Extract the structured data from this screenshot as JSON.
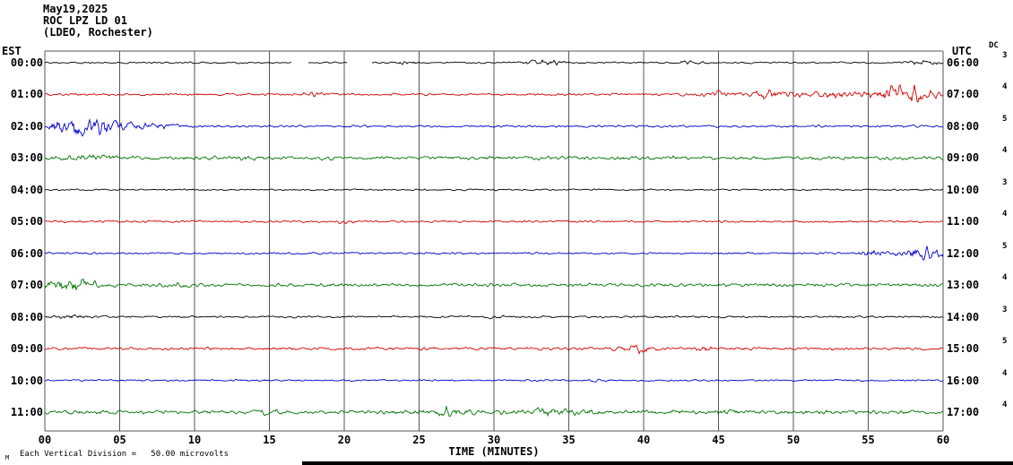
{
  "header": {
    "date": "May19,2025",
    "station": "ROC LPZ LD 01",
    "network": "(LDEO, Rochester)"
  },
  "axes": {
    "left_label": "EST",
    "right_label": "UTC",
    "dc_label": "DC",
    "x_title": "TIME (MINUTES)",
    "x_ticks": [
      "00",
      "05",
      "10",
      "15",
      "20",
      "25",
      "30",
      "35",
      "40",
      "45",
      "50",
      "55",
      "60"
    ]
  },
  "footer": {
    "corner_mark": "M",
    "scale_note": "Each Vertical Division =   50.00 microvolts"
  },
  "colors": {
    "black": "#000000",
    "red": "#d40000",
    "blue": "#0000cc",
    "green": "#007400"
  },
  "chart_data": {
    "type": "line",
    "kind": "seismogram-helicorder",
    "title": "ROC LPZ LD 01 (LDEO, Rochester) May19,2025",
    "xlabel": "TIME (MINUTES)",
    "x_range_minutes": [
      0,
      60
    ],
    "minutes_per_row": 60,
    "vertical_division_microvolts": 50.0,
    "rows": [
      {
        "est": "00:00",
        "utc": "06:00",
        "color": "black",
        "dc": "3",
        "base_amp": 0.7,
        "events": [
          {
            "m": 24,
            "w": 0.5,
            "a": 1.2
          },
          {
            "m": 33.5,
            "w": 1.0,
            "a": 2.2
          },
          {
            "m": 43,
            "w": 0.6,
            "a": 1.2
          },
          {
            "m": 58.5,
            "w": 0.8,
            "a": 1.8
          }
        ],
        "gaps": [
          [
            16.5,
            17.6
          ],
          [
            20.2,
            21.8
          ]
        ]
      },
      {
        "est": "01:00",
        "utc": "07:00",
        "color": "red",
        "dc": "4",
        "base_amp": 1.0,
        "events": [
          {
            "m": 18,
            "w": 0.4,
            "a": 2.0
          },
          {
            "m": 44.5,
            "w": 1.0,
            "a": 2.0
          },
          {
            "m": 48.5,
            "w": 1.2,
            "a": 3.5
          },
          {
            "m": 52.5,
            "w": 1.0,
            "a": 3.0
          },
          {
            "m": 57.3,
            "w": 1.4,
            "a": 9.0
          }
        ],
        "gaps": []
      },
      {
        "est": "02:00",
        "utc": "08:00",
        "color": "blue",
        "dc": "5",
        "base_amp": 1.0,
        "events": [
          {
            "m": 2.3,
            "w": 1.3,
            "a": 8.0
          },
          {
            "m": 4.8,
            "w": 1.0,
            "a": 3.5
          },
          {
            "m": 7.5,
            "w": 1.5,
            "a": 1.5
          }
        ],
        "gaps": []
      },
      {
        "est": "03:00",
        "utc": "09:00",
        "color": "green",
        "dc": "4",
        "base_amp": 1.6,
        "events": [
          {
            "m": 3,
            "w": 1.5,
            "a": 2.2
          },
          {
            "m": 14,
            "w": 0.6,
            "a": 1.2
          }
        ],
        "gaps": []
      },
      {
        "est": "04:00",
        "utc": "10:00",
        "color": "black",
        "dc": "3",
        "base_amp": 0.7,
        "events": [],
        "gaps": []
      },
      {
        "est": "05:00",
        "utc": "11:00",
        "color": "red",
        "dc": "4",
        "base_amp": 0.9,
        "events": [
          {
            "m": 20,
            "w": 0.4,
            "a": 1.2
          }
        ],
        "gaps": []
      },
      {
        "est": "06:00",
        "utc": "12:00",
        "color": "blue",
        "dc": "5",
        "base_amp": 0.8,
        "events": [
          {
            "m": 55.5,
            "w": 0.7,
            "a": 2.5
          },
          {
            "m": 58.6,
            "w": 1.0,
            "a": 5.0
          }
        ],
        "gaps": []
      },
      {
        "est": "07:00",
        "utc": "13:00",
        "color": "green",
        "dc": "4",
        "base_amp": 1.5,
        "events": [
          {
            "m": 1.6,
            "w": 1.2,
            "a": 5.0
          },
          {
            "m": 9,
            "w": 0.5,
            "a": 1.5
          }
        ],
        "gaps": []
      },
      {
        "est": "08:00",
        "utc": "14:00",
        "color": "black",
        "dc": "3",
        "base_amp": 0.9,
        "events": [
          {
            "m": 2,
            "w": 0.8,
            "a": 1.3
          },
          {
            "m": 30,
            "w": 0.5,
            "a": 1.0
          }
        ],
        "gaps": []
      },
      {
        "est": "09:00",
        "utc": "15:00",
        "color": "red",
        "dc": "5",
        "base_amp": 1.2,
        "events": [
          {
            "m": 25.5,
            "w": 0.4,
            "a": 1.4
          },
          {
            "m": 39.6,
            "w": 0.8,
            "a": 2.6
          },
          {
            "m": 44,
            "w": 0.5,
            "a": 1.6
          }
        ],
        "gaps": []
      },
      {
        "est": "10:00",
        "utc": "16:00",
        "color": "blue",
        "dc": "4",
        "base_amp": 0.8,
        "events": [
          {
            "m": 37,
            "w": 0.4,
            "a": 1.0
          }
        ],
        "gaps": []
      },
      {
        "est": "11:00",
        "utc": "17:00",
        "color": "green",
        "dc": "4",
        "base_amp": 1.6,
        "events": [
          {
            "m": 15,
            "w": 0.6,
            "a": 2.0
          },
          {
            "m": 27,
            "w": 1.0,
            "a": 2.6
          },
          {
            "m": 34,
            "w": 2.0,
            "a": 2.0
          },
          {
            "m": 45.5,
            "w": 0.6,
            "a": 1.6
          }
        ],
        "gaps": []
      }
    ]
  }
}
